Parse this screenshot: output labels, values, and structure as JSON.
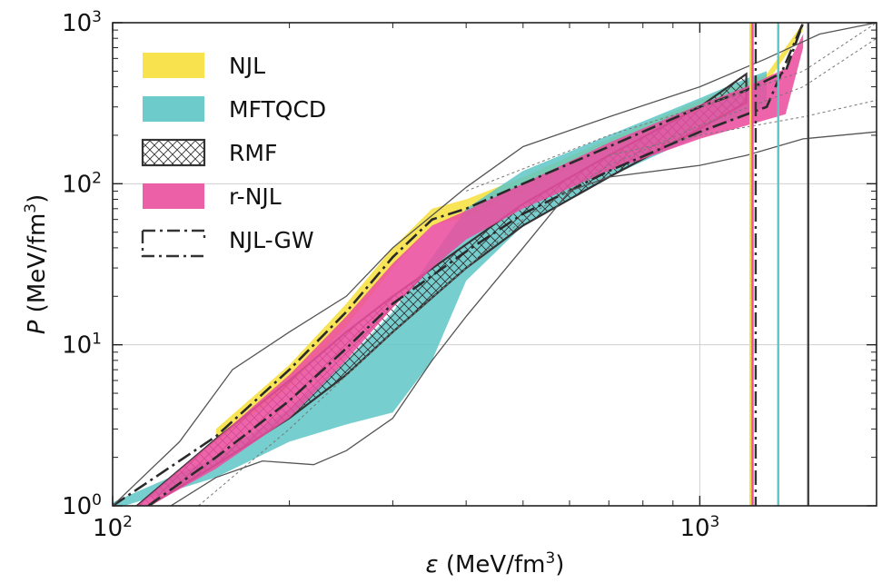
{
  "chart_data": {
    "type": "area",
    "xscale": "log",
    "yscale": "log",
    "xlim": [
      100,
      2000
    ],
    "ylim": [
      1,
      1000
    ],
    "xticks": [
      {
        "value": 100,
        "base": "10",
        "exp": "2"
      },
      {
        "value": 1000,
        "base": "10",
        "exp": "3"
      }
    ],
    "yticks": [
      {
        "value": 1,
        "base": "10",
        "exp": "0"
      },
      {
        "value": 10,
        "base": "10",
        "exp": "1"
      },
      {
        "value": 100,
        "base": "10",
        "exp": "2"
      },
      {
        "value": 1000,
        "base": "10",
        "exp": "3"
      }
    ],
    "xlabel": {
      "symbol": "ε",
      "unit": " (MeV/fm",
      "exp": "3",
      "close": ")"
    },
    "ylabel": {
      "symbol": "P",
      "unit": " (MeV/fm",
      "exp": "3",
      "close": ")"
    },
    "grid": true,
    "legend": "top-left",
    "legend_entries": [
      {
        "label": "NJL",
        "color": "#f7df3a",
        "style": "fill"
      },
      {
        "label": "MFTQCD",
        "color": "#5ec5c7",
        "style": "fill"
      },
      {
        "label": "RMF",
        "color": "#444444",
        "style": "hatch"
      },
      {
        "label": "r-NJL",
        "color": "#ea4f9f",
        "style": "fill"
      },
      {
        "label": "NJL-GW",
        "color": "#333333",
        "style": "dashdot"
      }
    ],
    "bands": [
      {
        "name": "NJL",
        "color": "#f7df3a",
        "x": [
          150,
          200,
          250,
          300,
          350,
          400,
          500,
          700,
          1000,
          1300,
          1500
        ],
        "upper": [
          3.0,
          7.5,
          18,
          40,
          70,
          80,
          110,
          190,
          330,
          480,
          1000
        ],
        "lower": [
          2.5,
          5.5,
          13,
          30,
          55,
          62,
          90,
          160,
          280,
          420,
          900
        ]
      },
      {
        "name": "MFTQCD",
        "color": "#5ec5c7",
        "x": [
          100,
          150,
          200,
          250,
          300,
          350,
          400,
          500,
          700,
          1000,
          1200,
          1300
        ],
        "upper": [
          1.05,
          2.0,
          4.0,
          8.0,
          16,
          35,
          70,
          120,
          200,
          340,
          450,
          500
        ],
        "lower": [
          0.95,
          1.5,
          2.5,
          3.2,
          3.8,
          8.0,
          25,
          55,
          110,
          200,
          270,
          300
        ]
      },
      {
        "name": "RMF",
        "color": "#444444",
        "x": [
          110,
          150,
          200,
          250,
          300,
          400,
          500,
          700,
          1000,
          1200
        ],
        "upper": [
          1.0,
          2.6,
          6.0,
          12,
          20,
          42,
          75,
          150,
          300,
          480
        ],
        "lower": [
          0.9,
          1.8,
          3.5,
          6.5,
          12,
          30,
          55,
          110,
          220,
          320
        ]
      },
      {
        "name": "r-NJL",
        "color": "#ea4f9f",
        "x": [
          110,
          150,
          200,
          250,
          300,
          350,
          400,
          500,
          700,
          1000,
          1200,
          1400,
          1500
        ],
        "upper": [
          1.0,
          2.6,
          6.5,
          15,
          32,
          55,
          68,
          100,
          180,
          310,
          400,
          520,
          850
        ],
        "lower": [
          0.9,
          1.7,
          3.5,
          8.0,
          17,
          30,
          45,
          70,
          120,
          190,
          230,
          270,
          700
        ]
      }
    ],
    "curves": [
      {
        "name": "NJL-GW",
        "style": "dashdot",
        "x": [
          100,
          150,
          200,
          250,
          300,
          350,
          400,
          500,
          700,
          1000,
          1200,
          1400,
          1500
        ],
        "y": [
          1.0,
          2.7,
          7.0,
          16,
          35,
          60,
          70,
          100,
          170,
          300,
          380,
          500,
          1000
        ]
      },
      {
        "name": "NJL-GW",
        "style": "dashdot",
        "x": [
          115,
          150,
          200,
          250,
          300,
          400,
          500,
          700,
          1000,
          1300,
          1500
        ],
        "y": [
          1.0,
          2.0,
          4.5,
          9.5,
          18,
          38,
          65,
          120,
          210,
          300,
          1000
        ]
      },
      {
        "name": "",
        "style": "solid-outer",
        "x": [
          100,
          130,
          160,
          200,
          250,
          300,
          400,
          500,
          700,
          1000,
          1300,
          1600,
          2000
        ],
        "y": [
          1.0,
          2.5,
          7.0,
          12,
          20,
          40,
          95,
          170,
          260,
          400,
          600,
          850,
          1000
        ]
      },
      {
        "name": "",
        "style": "solid-outer",
        "x": [
          120,
          150,
          180,
          220,
          250,
          300,
          350,
          400,
          500,
          600,
          700,
          1000,
          1200,
          1500,
          2000
        ],
        "y": [
          0.9,
          1.5,
          1.9,
          1.8,
          2.2,
          3.5,
          8.0,
          15,
          40,
          90,
          110,
          130,
          150,
          190,
          210
        ]
      },
      {
        "name": "",
        "style": "dotted",
        "x": [
          140,
          200,
          300,
          400,
          500,
          700,
          1000,
          1500,
          2000
        ],
        "y": [
          1.0,
          3.0,
          12,
          30,
          60,
          130,
          230,
          400,
          800
        ]
      },
      {
        "name": "",
        "style": "dotted",
        "x": [
          400,
          700,
          1000,
          1500,
          2000
        ],
        "y": [
          90,
          200,
          300,
          500,
          1000
        ]
      },
      {
        "name": "",
        "style": "dotted",
        "x": [
          700,
          1000,
          1500,
          2000
        ],
        "y": [
          150,
          200,
          260,
          330
        ]
      }
    ],
    "vlines": [
      {
        "x": 1220,
        "color": "#f7df3a",
        "style": "solid"
      },
      {
        "x": 1230,
        "color": "#ea4f9f",
        "style": "solid"
      },
      {
        "x": 1245,
        "color": "#333333",
        "style": "dashdot"
      },
      {
        "x": 1360,
        "color": "#5ec5c7",
        "style": "solid"
      },
      {
        "x": 1530,
        "color": "#444444",
        "style": "solid"
      }
    ]
  }
}
